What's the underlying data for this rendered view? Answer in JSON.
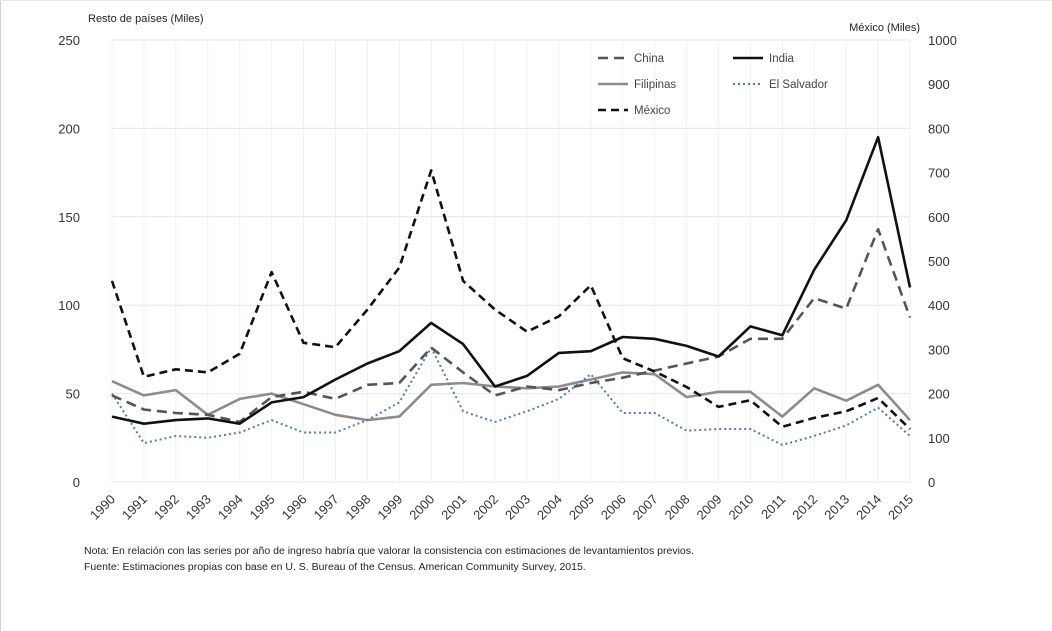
{
  "chart_data": {
    "type": "line",
    "left_axis_label": "Resto de países (Miles)",
    "right_axis_label": "México (Miles)",
    "left_ylim": [
      0,
      250
    ],
    "left_ticks": [
      0,
      50,
      100,
      150,
      200,
      250
    ],
    "right_ylim": [
      0,
      1000
    ],
    "right_ticks": [
      0,
      100,
      200,
      300,
      400,
      500,
      600,
      700,
      800,
      900,
      1000
    ],
    "categories": [
      "1990",
      "1991",
      "1992",
      "1993",
      "1994",
      "1995",
      "1996",
      "1997",
      "1998",
      "1999",
      "2000",
      "2001",
      "2002",
      "2003",
      "2004",
      "2005",
      "2006",
      "2007",
      "2008",
      "2009",
      "2010",
      "2011",
      "2012",
      "2013",
      "2014",
      "2015"
    ],
    "grid": true,
    "legend_position": "top-right",
    "series": [
      {
        "name": "China",
        "axis": "left",
        "color": "#555555",
        "style": "dash",
        "values": [
          49,
          41,
          39,
          38,
          34,
          48,
          51,
          47,
          55,
          56,
          76,
          62,
          49,
          54,
          52,
          56,
          59,
          63,
          67,
          71,
          81,
          81,
          104,
          98,
          143,
          93
        ]
      },
      {
        "name": "India",
        "axis": "left",
        "color": "#111111",
        "style": "solid",
        "values": [
          37,
          33,
          35,
          36,
          33,
          45,
          48,
          58,
          67,
          74,
          90,
          78,
          54,
          60,
          73,
          74,
          82,
          81,
          77,
          71,
          88,
          83,
          120,
          148,
          195,
          110
        ]
      },
      {
        "name": "Filipinas",
        "axis": "left",
        "color": "#8c8c8c",
        "style": "solid",
        "values": [
          57,
          49,
          52,
          38,
          47,
          50,
          44,
          38,
          35,
          37,
          55,
          56,
          54,
          53,
          54,
          58,
          62,
          61,
          48,
          51,
          51,
          37,
          53,
          46,
          55,
          35
        ]
      },
      {
        "name": "El Salvador",
        "axis": "left",
        "color": "#4a7bbf",
        "style": "dot",
        "values": [
          50,
          22,
          26,
          25,
          28,
          35,
          28,
          28,
          35,
          45,
          76,
          40,
          34,
          40,
          47,
          61,
          39,
          39,
          29,
          30,
          30,
          21,
          26,
          32,
          42,
          26
        ]
      },
      {
        "name": "México",
        "axis": "right",
        "color": "#111111",
        "style": "bigdash",
        "values": [
          455,
          238,
          255,
          248,
          290,
          475,
          315,
          305,
          390,
          485,
          705,
          455,
          390,
          340,
          375,
          445,
          280,
          250,
          215,
          170,
          185,
          125,
          145,
          160,
          190,
          120
        ]
      }
    ]
  },
  "notes": {
    "line1": "Nota: En relación con las series por año de ingreso habría que valorar la consistencia con estimaciones de levantamientos previos.",
    "line2": "Fuente: Estimaciones propias con base en U. S. Bureau of the Census. American Community Survey, 2015."
  }
}
